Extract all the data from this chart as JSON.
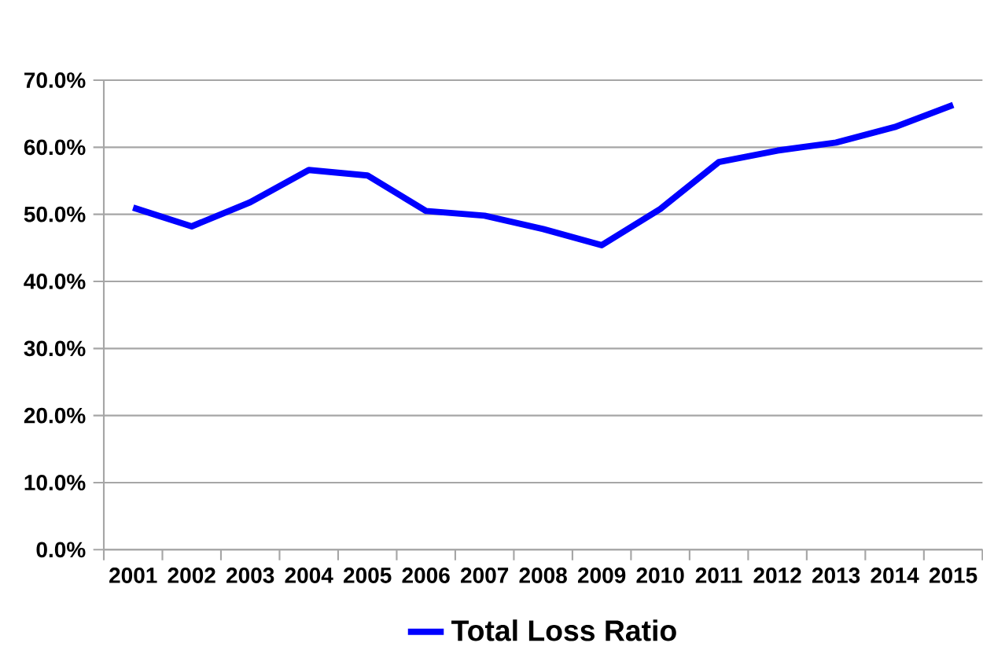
{
  "chart_data": {
    "type": "line",
    "categories": [
      "2001",
      "2002",
      "2003",
      "2004",
      "2005",
      "2006",
      "2007",
      "2008",
      "2009",
      "2010",
      "2011",
      "2012",
      "2013",
      "2014",
      "2015"
    ],
    "series": [
      {
        "name": "Total Loss Ratio",
        "color": "#0000ff",
        "values": [
          51.0,
          48.2,
          51.8,
          56.6,
          55.8,
          50.5,
          49.8,
          47.8,
          45.4,
          50.8,
          57.8,
          59.5,
          60.7,
          63.0,
          66.3
        ]
      }
    ],
    "ylim": [
      0,
      70
    ],
    "yticks": [
      {
        "value": 0,
        "label": "0.0%"
      },
      {
        "value": 10,
        "label": "10.0%"
      },
      {
        "value": 20,
        "label": "20.0%"
      },
      {
        "value": 30,
        "label": "30.0%"
      },
      {
        "value": 40,
        "label": "40.0%"
      },
      {
        "value": 50,
        "label": "50.0%"
      },
      {
        "value": 60,
        "label": "60.0%"
      },
      {
        "value": 70,
        "label": "70.0%"
      }
    ],
    "grid": "y",
    "legend": "bottom",
    "marker": "none",
    "line_style": "solid"
  }
}
